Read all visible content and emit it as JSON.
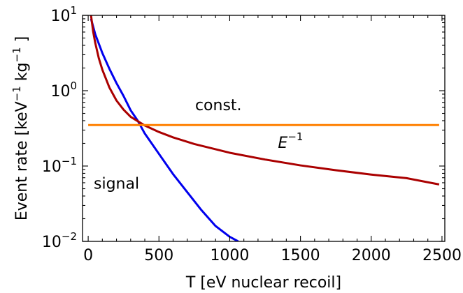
{
  "chart_data": {
    "type": "line",
    "title": "",
    "xlabel": "T [eV nuclear recoil]",
    "ylabel": {
      "prefix": "Event rate [keV",
      "sup1": "−1",
      "mid": " kg",
      "sup2": "−1",
      "suffix": " ]"
    },
    "xlim": [
      -40,
      2520
    ],
    "ylim": [
      0.01,
      10
    ],
    "yscale": "log",
    "grid": false,
    "x_ticks": [
      0,
      500,
      1000,
      1500,
      2000,
      2500
    ],
    "x_tick_labels": [
      "0",
      "500",
      "1000",
      "1500",
      "2000",
      "2500"
    ],
    "y_ticks": [
      {
        "value": 0.01,
        "base": "10",
        "exp": "−2"
      },
      {
        "value": 0.1,
        "base": "10",
        "exp": "−1"
      },
      {
        "value": 1,
        "base": "10",
        "exp": "0"
      },
      {
        "value": 10,
        "base": "10",
        "exp": "1"
      }
    ],
    "series": [
      {
        "name": "signal",
        "color": "#0000ee",
        "x": [
          20,
          50,
          100,
          150,
          200,
          250,
          300,
          350,
          400,
          500,
          600,
          700,
          800,
          900,
          1000,
          1060
        ],
        "y": [
          9.0,
          5.6,
          3.16,
          1.95,
          1.26,
          0.85,
          0.55,
          0.4,
          0.27,
          0.145,
          0.078,
          0.045,
          0.026,
          0.016,
          0.0115,
          0.01
        ]
      },
      {
        "name": "E",
        "name_sup": "−1",
        "color": "#aa0000",
        "x": [
          20,
          35,
          50,
          75,
          100,
          150,
          200,
          250,
          300,
          400,
          500,
          600,
          750,
          1000,
          1250,
          1500,
          1750,
          2000,
          2250,
          2480
        ],
        "y": [
          10.0,
          6.1,
          4.3,
          2.7,
          1.9,
          1.1,
          0.74,
          0.56,
          0.45,
          0.345,
          0.283,
          0.24,
          0.196,
          0.15,
          0.122,
          0.102,
          0.088,
          0.077,
          0.069,
          0.057
        ]
      },
      {
        "name": "const.",
        "color": "#ff8000",
        "x": [
          0,
          2480
        ],
        "y": [
          0.35,
          0.35
        ]
      }
    ],
    "annotations": [
      {
        "text": "const.",
        "x": 920,
        "y": 0.55
      },
      {
        "text": "signal",
        "x": 200,
        "y": 0.05
      },
      {
        "text": "E",
        "sup": "−1",
        "x": 1430,
        "y": 0.175
      }
    ]
  }
}
